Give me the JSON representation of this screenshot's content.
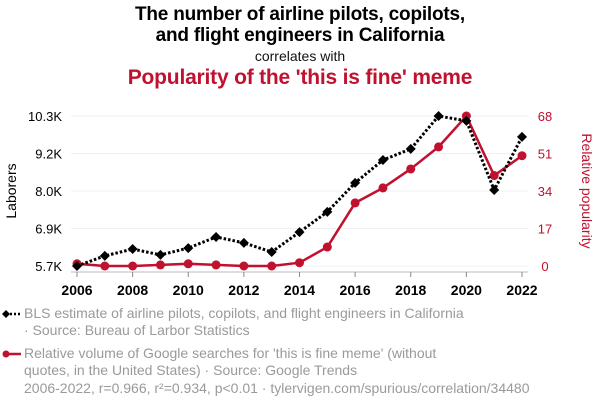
{
  "header": {
    "title_line1": "The number of airline pilots, copilots,",
    "title_line2": "and flight engineers in California",
    "subtitle": "correlates with",
    "title2": "Popularity of the 'this is fine' meme"
  },
  "legend": [
    {
      "icon": "dotted-line-diamond-marker-icon",
      "line1": "BLS estimate of airline pilots, copilots, and flight engineers in California",
      "line2": "· Source: Bureau of Larbor Statistics"
    },
    {
      "icon": "solid-line-circle-marker-icon",
      "line1": "Relative volume of Google searches for 'this is fine meme' (without",
      "line2": "quotes, in the United States) · Source: Google Trends"
    }
  ],
  "footer": "2006-2022, r=0.966, r²=0.934, p<0.01 · tylervigen.com/spurious/correlation/34480",
  "colors": {
    "series1": "#000000",
    "series2": "#c0112f",
    "grid": "#f0f0f0",
    "muted": "#9a9a9a"
  },
  "chart_data": {
    "type": "line",
    "title": "The number of airline pilots, copilots, and flight engineers in California correlates with Popularity of the 'this is fine' meme",
    "x": [
      2006,
      2007,
      2008,
      2009,
      2010,
      2011,
      2012,
      2013,
      2014,
      2015,
      2016,
      2017,
      2018,
      2019,
      2020,
      2021,
      2022
    ],
    "xlim": [
      2006,
      2022
    ],
    "xticks": [
      "2006",
      "2008",
      "2010",
      "2012",
      "2014",
      "2016",
      "2018",
      "2020",
      "2022"
    ],
    "grid": true,
    "legend_position": "bottom",
    "y_left": {
      "label": "Laborers",
      "ylim": [
        5700,
        10300
      ],
      "ticks": [
        5700,
        6850,
        8000,
        9150,
        10300
      ],
      "tick_labels": [
        "5.7K",
        "6.9K",
        "8.0K",
        "9.2K",
        "10.3K"
      ]
    },
    "y_right": {
      "label": "Relative popularity",
      "ylim": [
        0,
        68
      ],
      "ticks": [
        0,
        17,
        34,
        51,
        68
      ],
      "tick_labels": [
        "0",
        "17",
        "34",
        "51",
        "68"
      ]
    },
    "series": [
      {
        "name": "BLS estimate of airline pilots, copilots, and flight engineers in California",
        "axis": "left",
        "style": "dotted",
        "marker": "diamond",
        "values": [
          5700,
          6010,
          6220,
          6040,
          6250,
          6590,
          6410,
          6130,
          6740,
          7360,
          8250,
          8950,
          9290,
          10300,
          10150,
          8030,
          9660
        ]
      },
      {
        "name": "Relative volume of Google searches for 'this is fine meme'",
        "axis": "right",
        "style": "solid",
        "marker": "circle",
        "values": [
          1,
          0,
          0,
          0.5,
          1,
          0.5,
          0,
          0,
          1.5,
          8.6,
          28.6,
          35.4,
          44,
          54,
          68,
          41,
          50
        ]
      }
    ]
  }
}
